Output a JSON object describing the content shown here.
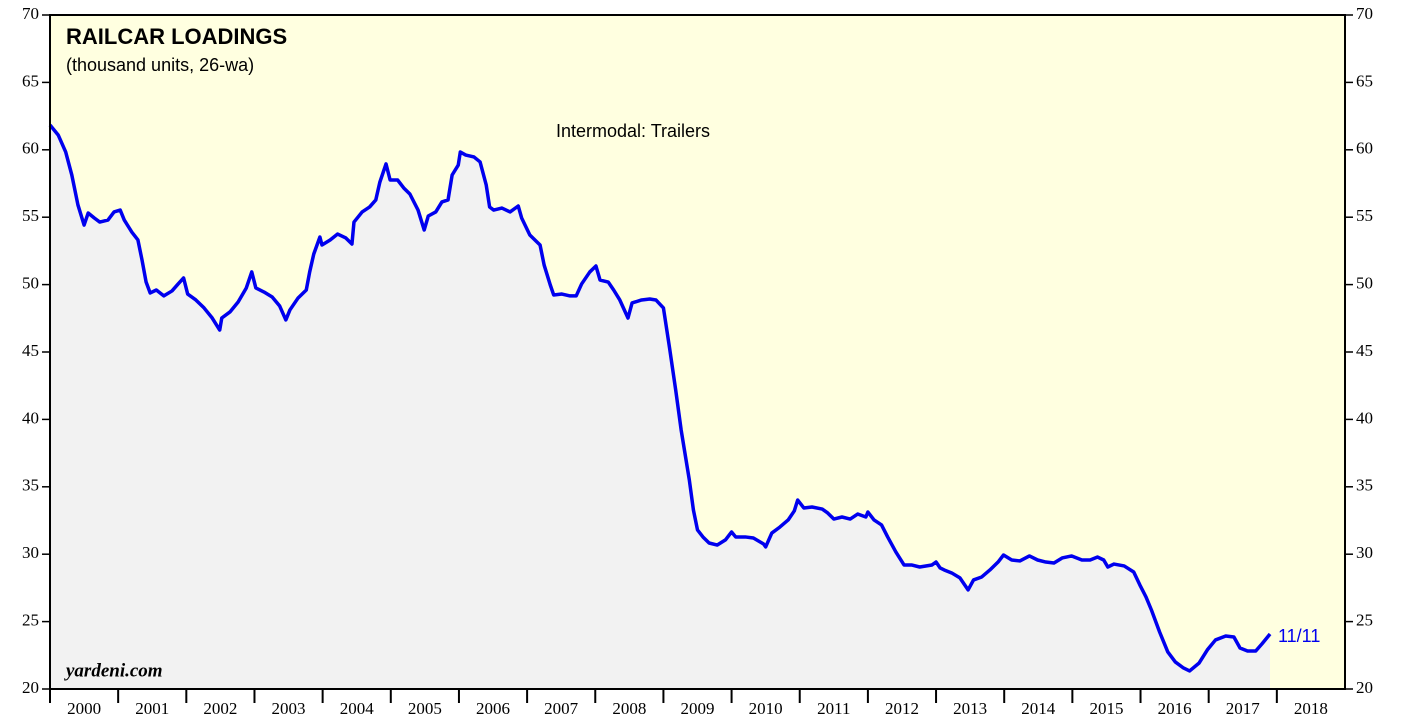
{
  "chart_data": {
    "type": "line",
    "title": "RAILCAR LOADINGS",
    "subtitle": "(thousand units, 26-wa)",
    "end_label": "11/11",
    "source": "yardeni.com",
    "background": "#ffffe0",
    "area_color": "#f2f2f2",
    "xlim": [
      2000,
      2019
    ],
    "xticks": [
      2000,
      2001,
      2002,
      2003,
      2004,
      2005,
      2006,
      2007,
      2008,
      2009,
      2010,
      2011,
      2012,
      2013,
      2014,
      2015,
      2016,
      2017,
      2018
    ],
    "ylim": [
      20,
      70
    ],
    "yticks": [
      20,
      25,
      30,
      35,
      40,
      45,
      50,
      55,
      60,
      65,
      70
    ],
    "x": [
      2000.0,
      2000.12,
      2000.23,
      2000.32,
      2000.41,
      2000.5,
      2000.56,
      2000.65,
      2000.73,
      2000.85,
      2000.94,
      2001.03,
      2001.09,
      2001.2,
      2001.29,
      2001.35,
      2001.41,
      2001.47,
      2001.56,
      2001.67,
      2001.79,
      2001.88,
      2001.96,
      2002.02,
      2002.14,
      2002.26,
      2002.38,
      2002.49,
      2002.52,
      2002.64,
      2002.76,
      2002.88,
      2002.96,
      2003.02,
      2003.14,
      2003.26,
      2003.37,
      2003.46,
      2003.52,
      2003.64,
      2003.76,
      2003.81,
      2003.87,
      2003.96,
      2003.99,
      2004.11,
      2004.22,
      2004.34,
      2004.43,
      2004.46,
      2004.58,
      2004.69,
      2004.78,
      2004.84,
      2004.93,
      2004.99,
      2005.1,
      2005.19,
      2005.28,
      2005.4,
      2005.49,
      2005.55,
      2005.66,
      2005.75,
      2005.84,
      2005.9,
      2005.99,
      2006.02,
      2006.1,
      2006.22,
      2006.31,
      2006.4,
      2006.45,
      2006.51,
      2006.63,
      2006.75,
      2006.87,
      2006.92,
      2007.04,
      2007.19,
      2007.25,
      2007.34,
      2007.39,
      2007.51,
      2007.63,
      2007.72,
      2007.8,
      2007.92,
      2008.01,
      2008.07,
      2008.19,
      2008.27,
      2008.36,
      2008.48,
      2008.54,
      2008.68,
      2008.8,
      2008.89,
      2009.0,
      2009.09,
      2009.18,
      2009.26,
      2009.38,
      2009.44,
      2009.5,
      2009.58,
      2009.67,
      2009.79,
      2009.91,
      2010.0,
      2010.06,
      2010.2,
      2010.32,
      2010.47,
      2010.5,
      2010.59,
      2010.71,
      2010.83,
      2010.92,
      2010.97,
      2011.06,
      2011.18,
      2011.33,
      2011.41,
      2011.5,
      2011.62,
      2011.74,
      2011.85,
      2011.97,
      2012.0,
      2012.09,
      2012.2,
      2012.29,
      2012.41,
      2012.53,
      2012.64,
      2012.76,
      2012.94,
      2013.0,
      2013.06,
      2013.12,
      2013.23,
      2013.35,
      2013.47,
      2013.55,
      2013.67,
      2013.79,
      2013.91,
      2013.99,
      2014.11,
      2014.23,
      2014.37,
      2014.49,
      2014.61,
      2014.73,
      2014.85,
      2014.99,
      2015.14,
      2015.26,
      2015.37,
      2015.46,
      2015.52,
      2015.61,
      2015.76,
      2015.9,
      2015.99,
      2016.08,
      2016.16,
      2016.28,
      2016.4,
      2016.51,
      2016.63,
      2016.72,
      2016.86,
      2016.98,
      2017.1,
      2017.25,
      2017.37,
      2017.46,
      2017.57,
      2017.69,
      2017.78,
      2017.9
    ],
    "series": [
      {
        "name": "Intermodal: Trailers",
        "color": "#0000ee",
        "values": [
          61.84,
          61.1,
          59.84,
          58.13,
          55.91,
          54.42,
          55.31,
          54.94,
          54.64,
          54.79,
          55.39,
          55.53,
          54.79,
          53.9,
          53.31,
          51.83,
          50.19,
          49.38,
          49.6,
          49.16,
          49.53,
          50.05,
          50.49,
          49.3,
          48.86,
          48.27,
          47.52,
          46.63,
          47.52,
          47.97,
          48.71,
          49.75,
          50.94,
          49.75,
          49.45,
          49.08,
          48.41,
          47.38,
          48.12,
          49.01,
          49.6,
          50.94,
          52.27,
          53.53,
          52.94,
          53.31,
          53.75,
          53.46,
          53.01,
          54.64,
          55.39,
          55.76,
          56.28,
          57.61,
          58.95,
          57.76,
          57.76,
          57.17,
          56.72,
          55.53,
          54.05,
          55.09,
          55.39,
          56.13,
          56.28,
          58.13,
          58.87,
          59.84,
          59.61,
          59.47,
          59.1,
          57.39,
          55.76,
          55.53,
          55.68,
          55.39,
          55.83,
          54.94,
          53.68,
          52.94,
          51.45,
          49.97,
          49.23,
          49.3,
          49.16,
          49.16,
          50.05,
          50.94,
          51.38,
          50.34,
          50.19,
          49.6,
          48.86,
          47.52,
          48.64,
          48.86,
          48.93,
          48.86,
          48.27,
          45.3,
          42.18,
          39.22,
          35.51,
          33.28,
          31.8,
          31.28,
          30.83,
          30.68,
          31.06,
          31.65,
          31.28,
          31.28,
          31.2,
          30.76,
          30.54,
          31.57,
          32.02,
          32.54,
          33.21,
          34.02,
          33.43,
          33.5,
          33.35,
          33.06,
          32.61,
          32.76,
          32.61,
          32.98,
          32.76,
          33.13,
          32.54,
          32.17,
          31.28,
          30.17,
          29.2,
          29.2,
          29.05,
          29.2,
          29.42,
          28.98,
          28.83,
          28.61,
          28.24,
          27.35,
          28.09,
          28.31,
          28.83,
          29.42,
          29.94,
          29.57,
          29.5,
          29.87,
          29.57,
          29.42,
          29.35,
          29.72,
          29.87,
          29.57,
          29.57,
          29.79,
          29.57,
          29.05,
          29.27,
          29.13,
          28.68,
          27.72,
          26.83,
          25.86,
          24.23,
          22.75,
          22.01,
          21.56,
          21.34,
          21.93,
          22.9,
          23.64,
          23.93,
          23.86,
          23.04,
          22.82,
          22.82,
          23.34,
          24.08
        ]
      }
    ]
  }
}
